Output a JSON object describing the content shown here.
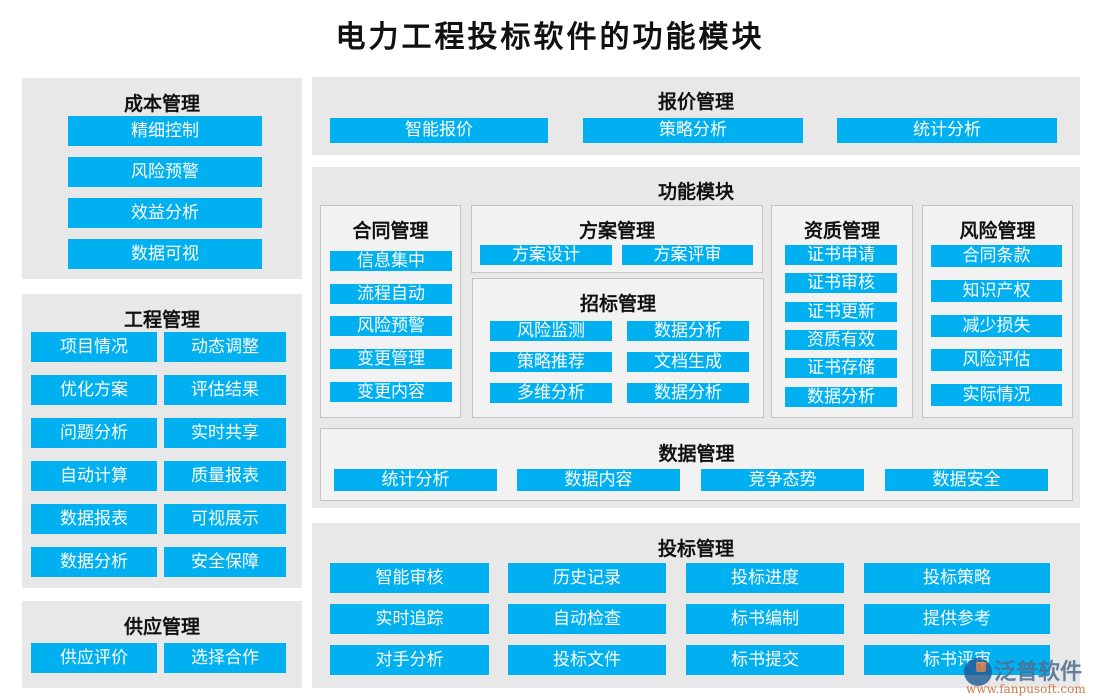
{
  "title": "电力工程投标软件的功能模块",
  "colors": {
    "button": "#00b0f0",
    "panel": "#e8e8e8",
    "box": "#f2f2f2",
    "button_text": "#ffffff"
  },
  "cost": {
    "title": "成本管理",
    "items": [
      "精细控制",
      "风险预警",
      "效益分析",
      "数据可视"
    ]
  },
  "engineering": {
    "title": "工程管理",
    "items": [
      "项目情况",
      "动态调整",
      "优化方案",
      "评估结果",
      "问题分析",
      "实时共享",
      "自动计算",
      "质量报表",
      "数据报表",
      "可视展示",
      "数据分析",
      "安全保障"
    ]
  },
  "supply": {
    "title": "供应管理",
    "items": [
      "供应评价",
      "选择合作"
    ]
  },
  "quote": {
    "title": "报价管理",
    "items": [
      "智能报价",
      "策略分析",
      "统计分析"
    ]
  },
  "function": {
    "title": "功能模块",
    "contract": {
      "title": "合同管理",
      "items": [
        "信息集中",
        "流程自动",
        "风险预警",
        "变更管理",
        "变更内容"
      ]
    },
    "plan": {
      "title": "方案管理",
      "items": [
        "方案设计",
        "方案评审"
      ]
    },
    "tender": {
      "title": "招标管理",
      "items": [
        "风险监测",
        "数据分析",
        "策略推荐",
        "文档生成",
        "多维分析",
        "数据分析"
      ]
    },
    "qualification": {
      "title": "资质管理",
      "items": [
        "证书申请",
        "证书审核",
        "证书更新",
        "资质有效",
        "证书存储",
        "数据分析"
      ]
    },
    "risk": {
      "title": "风险管理",
      "items": [
        "合同条款",
        "知识产权",
        "减少损失",
        "风险评估",
        "实际情况"
      ]
    },
    "data": {
      "title": "数据管理",
      "items": [
        "统计分析",
        "数据内容",
        "竞争态势",
        "数据安全"
      ]
    }
  },
  "bid": {
    "title": "投标管理",
    "items": [
      "智能审核",
      "历史记录",
      "投标进度",
      "投标策略",
      "实时追踪",
      "自动检查",
      "标书编制",
      "提供参考",
      "对手分析",
      "投标文件",
      "标书提交",
      "标书评审"
    ]
  },
  "watermark": {
    "brand": "泛普软件",
    "url": "www.fanpusoft.com"
  }
}
